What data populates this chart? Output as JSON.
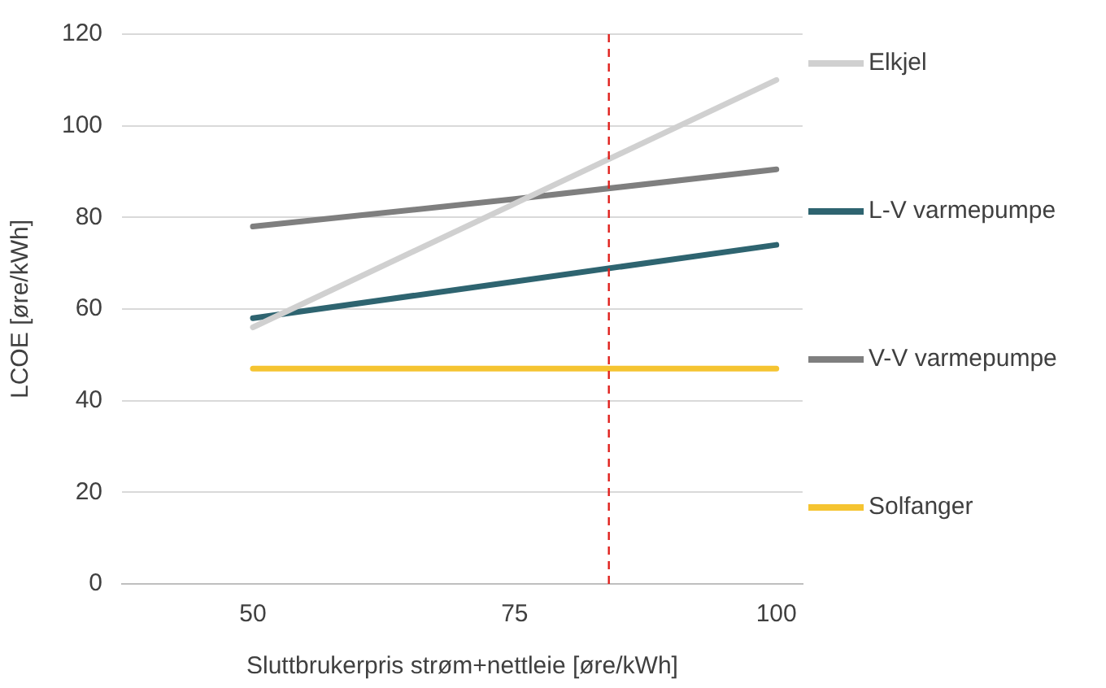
{
  "chart_data": {
    "type": "line",
    "xlabel": "Sluttbrukerpris strøm+nettleie [øre/kWh]",
    "ylabel": "LCOE [øre/kWh]",
    "x": [
      50,
      75,
      100
    ],
    "series": [
      {
        "name": "Elkjel",
        "color": "#d0d0d0",
        "values": [
          56,
          83,
          110
        ]
      },
      {
        "name": "L-V varmepumpe",
        "color": "#2e6470",
        "values": [
          58,
          66,
          74
        ]
      },
      {
        "name": "V-V varmepumpe",
        "color": "#7f7f7f",
        "values": [
          78,
          84,
          90.5
        ]
      },
      {
        "name": "Solfanger",
        "color": "#f5c431",
        "values": [
          47,
          47,
          47
        ]
      }
    ],
    "xlim": [
      37.5,
      102.5
    ],
    "xticks": [
      50,
      75,
      100
    ],
    "ylim": [
      0,
      120
    ],
    "yticks": [
      0,
      20,
      40,
      60,
      80,
      100,
      120
    ],
    "grid": "y",
    "legend": "right",
    "marker": "none",
    "line_style": "solid",
    "ref_lines": [
      {
        "axis": "x",
        "value": 84,
        "color": "#e0201c",
        "line_style": "dashed"
      }
    ]
  }
}
